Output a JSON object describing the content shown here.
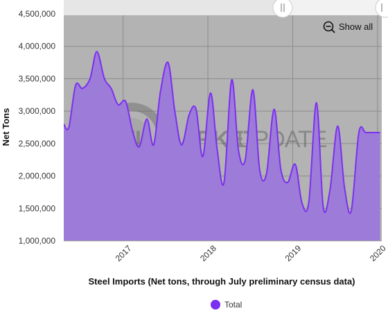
{
  "controls": {
    "show_all_label": "Show all",
    "zoom_icon": "zoom-out-icon",
    "scroll_handle_icon": "grip-lines-icon"
  },
  "watermark": {
    "part1": "STEEL",
    "part2": "MARKET",
    "part3": "UPDATE"
  },
  "colors": {
    "series": "#7b2ff0",
    "area_fill": "#9d7bd8",
    "plot_bg": "#b3b3b3",
    "grid": "#8c8c8c",
    "watermark": "#555555"
  },
  "chart_data": {
    "type": "area",
    "title": "",
    "xlabel": "Steel Imports (Net tons, through July preliminary census data)",
    "ylabel": "Net Tons",
    "ylim": [
      1000000,
      4500000
    ],
    "y_ticks": [
      "1,000,000",
      "1,500,000",
      "2,000,000",
      "2,500,000",
      "3,000,000",
      "3,500,000",
      "4,000,000",
      "4,500,000"
    ],
    "y_tick_values": [
      1000000,
      1500000,
      2000000,
      2500000,
      3000000,
      3500000,
      4000000,
      4500000
    ],
    "x_ticks": [
      "2017",
      "2018",
      "2019",
      "2020"
    ],
    "x_tick_positions": [
      2017,
      2018,
      2019,
      2020
    ],
    "xlim": [
      2016.3,
      2020.05
    ],
    "grid": true,
    "legend": {
      "position": "bottom-center",
      "entries": [
        "Total"
      ]
    },
    "series": [
      {
        "name": "Total",
        "x": [
          2016.3,
          2016.36,
          2016.44,
          2016.52,
          2016.61,
          2016.69,
          2016.78,
          2016.86,
          2016.94,
          2017.03,
          2017.11,
          2017.19,
          2017.28,
          2017.36,
          2017.44,
          2017.53,
          2017.61,
          2017.69,
          2017.78,
          2017.86,
          2017.94,
          2018.03,
          2018.11,
          2018.19,
          2018.28,
          2018.36,
          2018.44,
          2018.53,
          2018.61,
          2018.69,
          2018.78,
          2018.86,
          2018.94,
          2019.03,
          2019.11,
          2019.19,
          2019.28,
          2019.36,
          2019.44,
          2019.53,
          2019.61,
          2019.69,
          2019.78,
          2019.86,
          2019.94,
          2020.03
        ],
        "y": [
          2800000,
          2750000,
          3400000,
          3350000,
          3500000,
          3920000,
          3500000,
          3350000,
          3100000,
          3150000,
          2700000,
          2450000,
          2880000,
          2480000,
          3300000,
          3750000,
          3000000,
          2480000,
          2950000,
          3030000,
          2300000,
          3280000,
          2400000,
          1900000,
          3480000,
          2400000,
          2250000,
          3330000,
          2100000,
          2030000,
          3030000,
          2100000,
          1900000,
          2180000,
          1580000,
          1600000,
          3130000,
          1520000,
          1790000,
          2770000,
          1830000,
          1460000,
          2670000,
          2670000,
          2670000,
          2670000
        ]
      }
    ]
  }
}
